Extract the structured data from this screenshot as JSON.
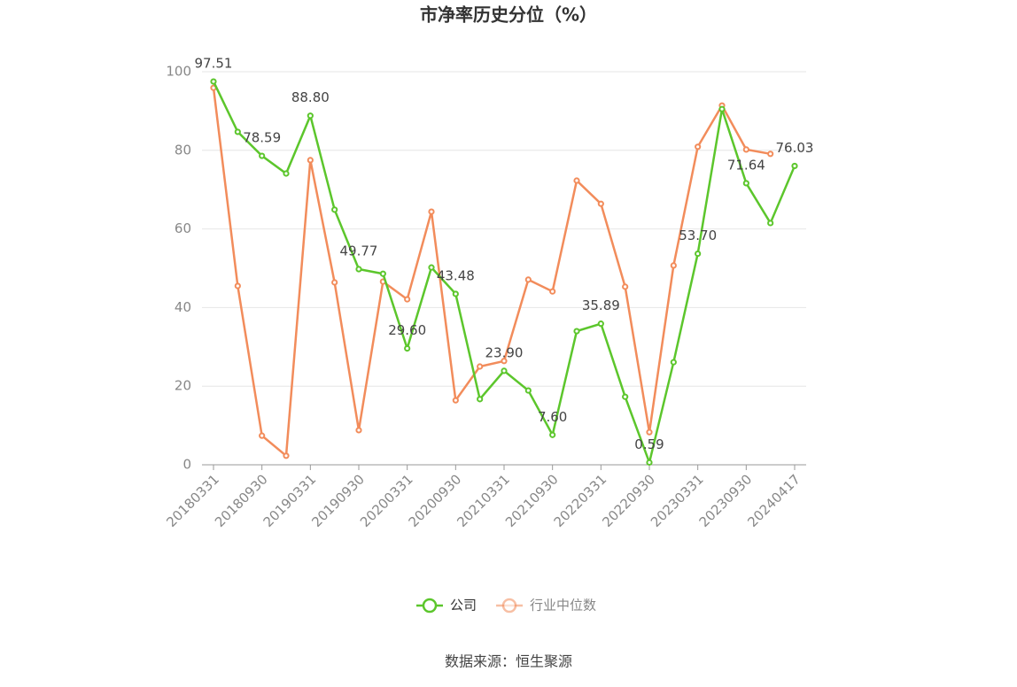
{
  "chart_data": {
    "type": "line",
    "title": "市净率历史分位（%）",
    "categories": [
      "20180331",
      null,
      "20180930",
      null,
      "20190331",
      null,
      "20190930",
      null,
      "20200331",
      null,
      "20200930",
      null,
      "20210331",
      null,
      "20210930",
      null,
      "20220331",
      null,
      "20220930",
      null,
      "20230331",
      null,
      "20230930",
      null,
      "20240417"
    ],
    "series": [
      {
        "name": "公司",
        "color": "#5cc62c",
        "values": [
          97.51,
          84.7,
          78.59,
          74.1,
          88.8,
          64.9,
          49.77,
          48.6,
          29.6,
          50.2,
          43.48,
          16.7,
          23.9,
          18.9,
          7.6,
          34.0,
          35.89,
          17.3,
          0.59,
          26.1,
          53.7,
          90.5,
          71.64,
          61.5,
          76.03
        ],
        "value_labels": [
          "97.51",
          null,
          "78.59",
          null,
          "88.80",
          null,
          "49.77",
          null,
          "29.60",
          null,
          "43.48",
          null,
          "23.90",
          null,
          "7.60",
          null,
          "35.89",
          null,
          "0.59",
          null,
          "53.70",
          null,
          "71.64",
          null,
          "76.03"
        ]
      },
      {
        "name": "行业中位数",
        "color": "#f28c5b",
        "values": [
          95.9,
          45.5,
          7.4,
          2.3,
          77.5,
          46.4,
          8.8,
          46.6,
          42.1,
          64.4,
          16.4,
          25.0,
          26.4,
          47.1,
          44.1,
          72.3,
          66.4,
          45.3,
          8.3,
          50.7,
          80.9,
          91.4,
          80.2,
          79.1,
          null
        ]
      }
    ],
    "ylim": [
      0,
      100
    ],
    "yticks": [
      0,
      20,
      40,
      60,
      80,
      100
    ],
    "grid": true,
    "source": "数据来源：恒生聚源"
  }
}
